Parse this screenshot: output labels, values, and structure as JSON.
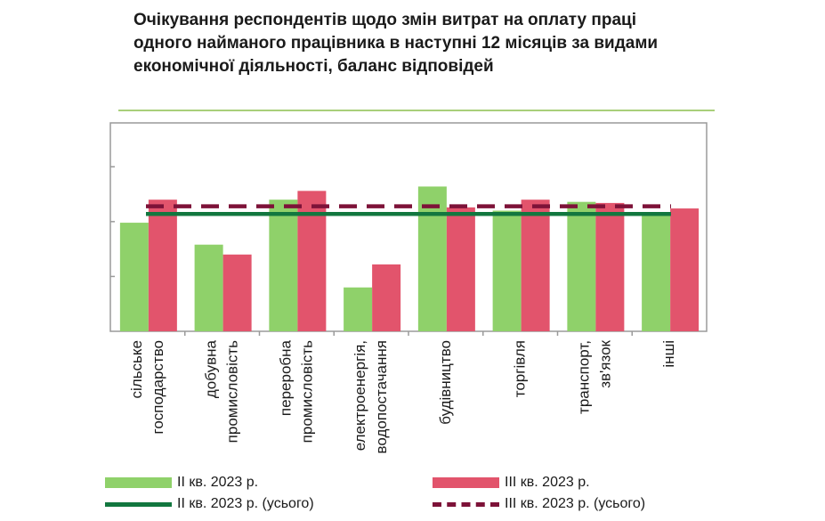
{
  "chart_data": {
    "type": "bar",
    "title": "Очікування респондентів щодо змін витрат на оплату праці одного найманого працівника в наступні 12 місяців за видами економічної діяльності, баланс відповідей",
    "categories": [
      [
        "сільське",
        "господарство"
      ],
      [
        "добувна",
        "промисловість"
      ],
      [
        "переробна",
        "промисловість"
      ],
      [
        "електроенергія,",
        "водопостачання"
      ],
      [
        "будівництво"
      ],
      [
        "торгівля"
      ],
      [
        "транспорт,",
        "зв'язок"
      ],
      [
        "інші"
      ]
    ],
    "ylim": [
      0,
      95
    ],
    "yticks": [
      0,
      25,
      50,
      75
    ],
    "grid": false,
    "series": [
      {
        "name": "ІІ кв. 2023 р.",
        "color": "#8fd16a",
        "values": [
          49.5,
          39.5,
          60,
          20,
          66,
          55,
          59,
          54
        ]
      },
      {
        "name": "ІІІ кв. 2023 р.",
        "color": "#e2546c",
        "values": [
          60,
          35,
          64,
          30.5,
          56.5,
          60,
          58.5,
          56
        ]
      }
    ],
    "reference_lines": [
      {
        "name": "ІІ кв. 2023 р. (усього)",
        "value": 53.5,
        "color": "#12773f",
        "style": "solid"
      },
      {
        "name": "ІІІ кв. 2023 р. (усього)",
        "value": 57,
        "color": "#7d1238",
        "style": "dashed"
      }
    ],
    "legend_position": "bottom"
  }
}
